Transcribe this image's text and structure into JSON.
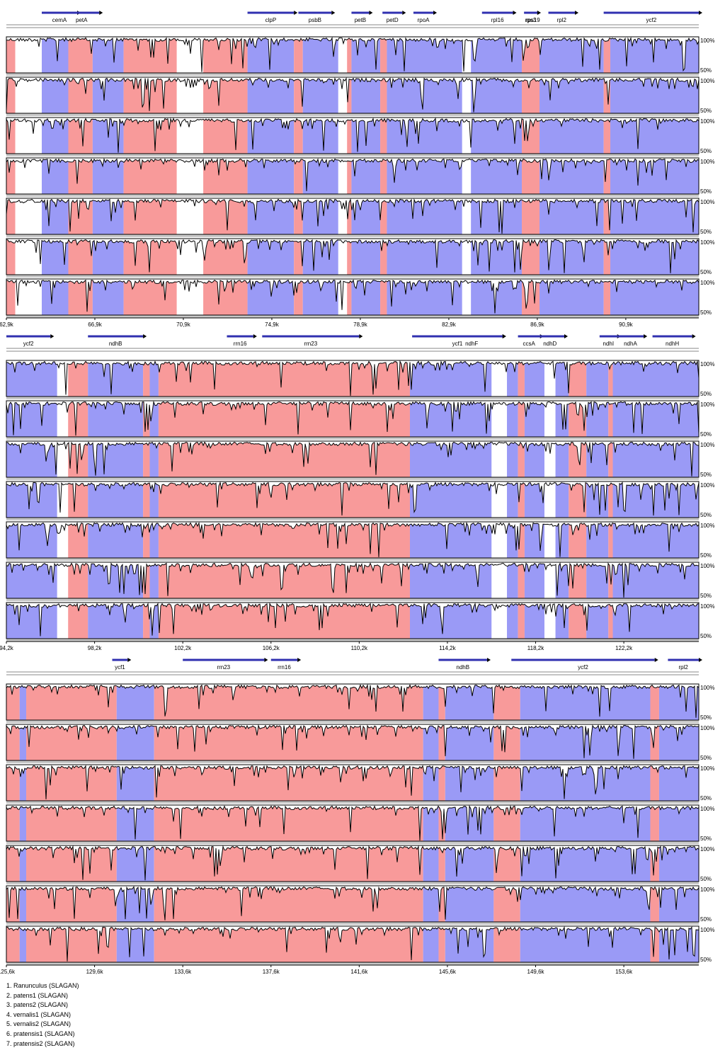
{
  "chart_data": {
    "type": "area",
    "colors": {
      "exon": "#9a9af6",
      "cns": "#f89a9a",
      "gene": "#3030b0",
      "track": "#000000"
    },
    "ylim": [
      50,
      100
    ],
    "y_tick_labels": [
      "100%",
      "50%"
    ],
    "sequences": [
      "1. Ranunculus (SLAGAN)",
      "2. patens1 (SLAGAN)",
      "3. patens2 (SLAGAN)",
      "4. vernalis1 (SLAGAN)",
      "5. vernalis2 (SLAGAN)",
      "6. pratensis1 (SLAGAN)",
      "7. pratensis2 (SLAGAN)"
    ],
    "panels": [
      {
        "x_range_kb": [
          62.9,
          94.2
        ],
        "x_tick_labels": [
          "62,9k",
          "66,9k",
          "70,9k",
          "74,9k",
          "78,9k",
          "82,9k",
          "86,9k",
          "90,9k"
        ],
        "genes": [
          {
            "name": "cemA",
            "start": 64.5,
            "end": 66.1
          },
          {
            "name": "petA",
            "start": 65.5,
            "end": 67.1
          },
          {
            "name": "clpP",
            "start": 73.8,
            "end": 75.9
          },
          {
            "name": "psbB",
            "start": 76.1,
            "end": 77.6
          },
          {
            "name": "petB",
            "start": 78.5,
            "end": 79.3
          },
          {
            "name": "petD",
            "start": 79.9,
            "end": 80.8
          },
          {
            "name": "rpoA",
            "start": 81.3,
            "end": 82.2
          },
          {
            "name": "rpl16",
            "start": 84.4,
            "end": 85.8
          },
          {
            "name": "rps3",
            "start": 86.3,
            "end": 86.9
          },
          {
            "name": "rps19",
            "start": 86.5,
            "end": 86.9
          },
          {
            "name": "rpl2",
            "start": 87.4,
            "end": 88.6
          },
          {
            "name": "ycf2",
            "start": 89.9,
            "end": 94.2
          }
        ],
        "regions": [
          {
            "type": "cns",
            "start": 62.9,
            "end": 63.3
          },
          {
            "type": "exon",
            "start": 64.5,
            "end": 65.7
          },
          {
            "type": "cns",
            "start": 65.7,
            "end": 66.8
          },
          {
            "type": "exon",
            "start": 66.8,
            "end": 68.2
          },
          {
            "type": "cns",
            "start": 68.2,
            "end": 70.6
          },
          {
            "type": "cns",
            "start": 71.8,
            "end": 73.8
          },
          {
            "type": "exon",
            "start": 73.8,
            "end": 75.9
          },
          {
            "type": "cns",
            "start": 75.9,
            "end": 76.3
          },
          {
            "type": "exon",
            "start": 76.3,
            "end": 77.9
          },
          {
            "type": "cns",
            "start": 78.3,
            "end": 78.5
          },
          {
            "type": "exon",
            "start": 78.5,
            "end": 79.8
          },
          {
            "type": "cns",
            "start": 79.8,
            "end": 80.1
          },
          {
            "type": "exon",
            "start": 80.1,
            "end": 83.5
          },
          {
            "type": "exon",
            "start": 83.9,
            "end": 86.2
          },
          {
            "type": "cns",
            "start": 86.2,
            "end": 87.0
          },
          {
            "type": "exon",
            "start": 87.0,
            "end": 89.9
          },
          {
            "type": "cns",
            "start": 89.9,
            "end": 90.2
          },
          {
            "type": "exon",
            "start": 90.2,
            "end": 94.2
          }
        ]
      },
      {
        "x_range_kb": [
          94.2,
          125.6
        ],
        "x_tick_labels": [
          "94,2k",
          "98,2k",
          "102,2k",
          "106,2k",
          "110,2k",
          "114,2k",
          "118,2k",
          "122,2k"
        ],
        "genes": [
          {
            "name": "ycf2",
            "start": 94.2,
            "end": 96.2
          },
          {
            "name": "ndhB",
            "start": 97.9,
            "end": 100.4
          },
          {
            "name": "rrn16",
            "start": 104.2,
            "end": 105.4
          },
          {
            "name": "rrn23",
            "start": 105.8,
            "end": 110.2
          },
          {
            "name": "ycf1",
            "start": 112.6,
            "end": 116.7
          },
          {
            "name": "ndhF",
            "start": 113.9,
            "end": 116.7
          },
          {
            "name": "ccsA",
            "start": 117.4,
            "end": 118.4
          },
          {
            "name": "ndhD",
            "start": 118.2,
            "end": 119.5
          },
          {
            "name": "ndhI",
            "start": 121.1,
            "end": 121.9
          },
          {
            "name": "ndhA",
            "start": 121.9,
            "end": 123.1
          },
          {
            "name": "ndhH",
            "start": 123.5,
            "end": 125.3
          }
        ],
        "regions": [
          {
            "type": "exon",
            "start": 94.2,
            "end": 96.5
          },
          {
            "type": "cns",
            "start": 97.0,
            "end": 97.9
          },
          {
            "type": "exon",
            "start": 97.9,
            "end": 100.4
          },
          {
            "type": "cns",
            "start": 100.4,
            "end": 100.7
          },
          {
            "type": "exon",
            "start": 100.7,
            "end": 101.1
          },
          {
            "type": "cns",
            "start": 101.1,
            "end": 112.5
          },
          {
            "type": "exon",
            "start": 112.5,
            "end": 116.2
          },
          {
            "type": "exon",
            "start": 116.9,
            "end": 117.4
          },
          {
            "type": "cns",
            "start": 117.4,
            "end": 117.7
          },
          {
            "type": "exon",
            "start": 117.7,
            "end": 118.6
          },
          {
            "type": "exon",
            "start": 119.1,
            "end": 119.7
          },
          {
            "type": "cns",
            "start": 119.7,
            "end": 120.5
          },
          {
            "type": "exon",
            "start": 120.5,
            "end": 121.5
          },
          {
            "type": "cns",
            "start": 121.5,
            "end": 121.7
          },
          {
            "type": "exon",
            "start": 121.7,
            "end": 125.6
          }
        ]
      },
      {
        "x_range_kb": [
          125.6,
          157.0
        ],
        "x_tick_labels": [
          "125,6k",
          "129,6k",
          "133,6k",
          "137,6k",
          "141,6k",
          "145,6k",
          "149,6k",
          "153,6k"
        ],
        "genes": [
          {
            "name": "ycf1",
            "start": 130.4,
            "end": 131.1
          },
          {
            "name": "rrn23",
            "start": 133.6,
            "end": 137.3
          },
          {
            "name": "rrn16",
            "start": 137.6,
            "end": 138.8
          },
          {
            "name": "ndhB",
            "start": 145.2,
            "end": 147.4
          },
          {
            "name": "ycf2",
            "start": 148.5,
            "end": 155.0
          },
          {
            "name": "rpl2",
            "start": 155.6,
            "end": 157.0
          }
        ],
        "regions": [
          {
            "type": "cns",
            "start": 125.6,
            "end": 126.2
          },
          {
            "type": "exon",
            "start": 126.2,
            "end": 126.5
          },
          {
            "type": "cns",
            "start": 126.5,
            "end": 130.6
          },
          {
            "type": "exon",
            "start": 130.6,
            "end": 132.3
          },
          {
            "type": "cns",
            "start": 132.3,
            "end": 144.5
          },
          {
            "type": "exon",
            "start": 144.5,
            "end": 145.2
          },
          {
            "type": "cns",
            "start": 145.2,
            "end": 145.5
          },
          {
            "type": "exon",
            "start": 145.5,
            "end": 147.7
          },
          {
            "type": "cns",
            "start": 147.7,
            "end": 148.9
          },
          {
            "type": "exon",
            "start": 148.9,
            "end": 154.8
          },
          {
            "type": "cns",
            "start": 154.8,
            "end": 155.2
          },
          {
            "type": "exon",
            "start": 155.2,
            "end": 157.0
          }
        ]
      }
    ]
  }
}
